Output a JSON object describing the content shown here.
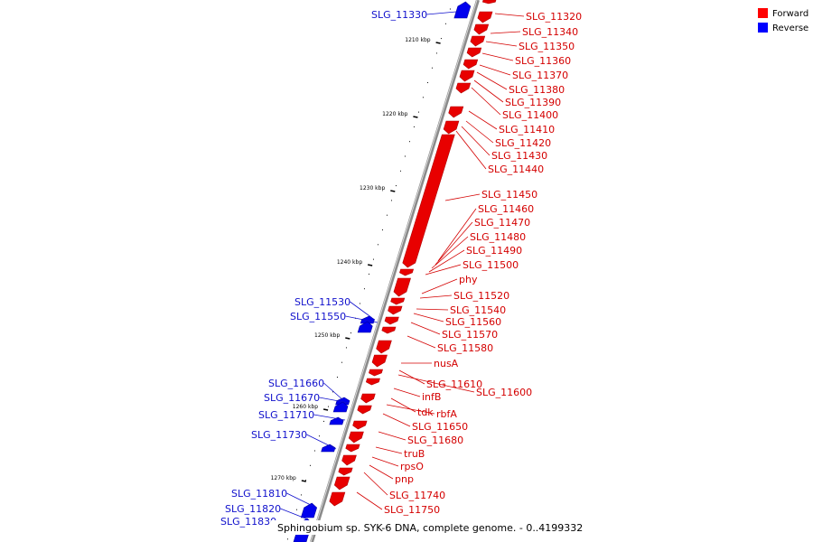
{
  "caption": "Sphingobium sp. SYK-6 DNA, complete genome. - 0..4199332",
  "legend": [
    {
      "label": "Forward",
      "color": "#ff0000"
    },
    {
      "label": "Reverse",
      "color": "#0000ff"
    }
  ],
  "colors": {
    "forward": "#e80000",
    "reverse": "#0000ee",
    "forward_label": "#d40000",
    "reverse_label": "#1010cc",
    "backbone": "#888888"
  },
  "scale_ticks": [
    "1210 kbp",
    "1220 kbp",
    "1230 kbp",
    "1240 kbp",
    "1250 kbp",
    "1260 kbp",
    "1270 kbp"
  ],
  "reverse_labels": [
    "SLG_11330",
    "SLG_11530",
    "SLG_11550",
    "SLG_11660",
    "SLG_11670",
    "SLG_11710",
    "SLG_11730",
    "SLG_11810",
    "SLG_11820",
    "SLG_11830"
  ],
  "forward_labels": [
    "SLG_11320",
    "SLG_11340",
    "SLG_11350",
    "SLG_11360",
    "SLG_11370",
    "SLG_11380",
    "SLG_11390",
    "SLG_11400",
    "SLG_11410",
    "SLG_11420",
    "SLG_11430",
    "SLG_11440",
    "SLG_11450",
    "SLG_11460",
    "SLG_11470",
    "SLG_11480",
    "SLG_11490",
    "SLG_11500",
    "phy",
    "SLG_11520",
    "SLG_11540",
    "SLG_11560",
    "SLG_11570",
    "SLG_11580",
    "nusA",
    "SLG_11610",
    "SLG_11600",
    "infB",
    "tdk",
    "rbfA",
    "SLG_11650",
    "SLG_11680",
    "truB",
    "rpsO",
    "pnp",
    "SLG_11740",
    "SLG_11750"
  ]
}
